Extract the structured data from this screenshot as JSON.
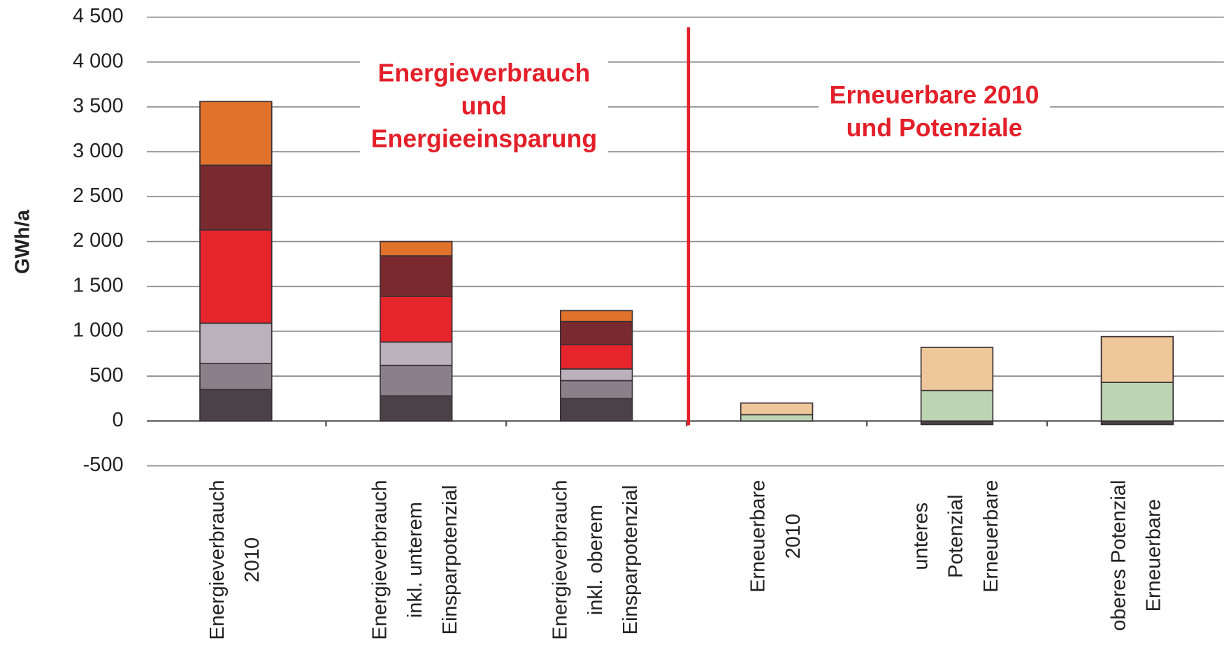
{
  "chart_data": {
    "type": "stacked_bar",
    "y_label": "GWh/a",
    "annotations": [
      {
        "lines": [
          "Energieverbrauch",
          "und",
          "Energieeinsparung"
        ],
        "color": "#e3202a"
      },
      {
        "lines": [
          "Erneuerbare 2010",
          "und Potenziale"
        ],
        "color": "#e3202a"
      }
    ],
    "categories": [
      [
        "Energieverbrauch",
        "2010"
      ],
      [
        "Energieverbrauch",
        "inkl. unterem",
        "Einsparpotenzial"
      ],
      [
        "Energieverbrauch",
        "inkl. oberem",
        "Einsparpotenzial"
      ],
      [
        "Erneuerbare",
        "2010"
      ],
      [
        "unteres",
        "Potenzial",
        "Erneuerbare"
      ],
      [
        "oberes Potenzial",
        "Erneuerbare"
      ]
    ],
    "series": [
      {
        "color": "#4b4249",
        "values": [
          350,
          280,
          250,
          null,
          null,
          null
        ]
      },
      {
        "color": "#8b8089",
        "values": [
          290,
          340,
          200,
          null,
          null,
          null
        ]
      },
      {
        "color": "#bbb1bc",
        "values": [
          450,
          260,
          130,
          null,
          null,
          null
        ]
      },
      {
        "color": "#e6242b",
        "values": [
          1040,
          510,
          270,
          null,
          null,
          null
        ]
      },
      {
        "color": "#7a2a2f",
        "values": [
          720,
          450,
          260,
          null,
          null,
          null
        ]
      },
      {
        "color": "#e0722b",
        "values": [
          710,
          160,
          120,
          null,
          null,
          null
        ]
      },
      {
        "color": "#4b4249",
        "values": [
          null,
          null,
          null,
          null,
          -40,
          -40
        ]
      },
      {
        "color": "#bcd4b2",
        "values": [
          null,
          null,
          null,
          70,
          340,
          430
        ]
      },
      {
        "color": "#eec89a",
        "values": [
          null,
          null,
          null,
          130,
          480,
          510
        ]
      }
    ],
    "divider_color": "#e3202a",
    "ylim": [
      -500,
      4500
    ],
    "yticks": [
      -500,
      0,
      500,
      {
        "value": 1000,
        "label": "1 000"
      },
      {
        "value": 1500,
        "label": "1 500"
      },
      {
        "value": 2000,
        "label": "2 000"
      },
      {
        "value": 2500,
        "label": "2 500"
      },
      {
        "value": 3000,
        "label": "3 000"
      },
      {
        "value": 3500,
        "label": "3 500"
      },
      {
        "value": 4000,
        "label": "4 000"
      },
      {
        "value": 4500,
        "label": "4 500"
      }
    ],
    "grid": true
  }
}
